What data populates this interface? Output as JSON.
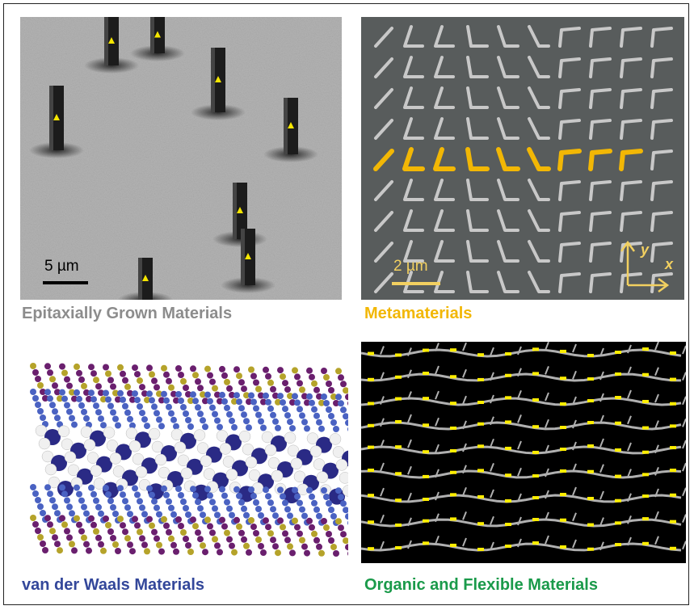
{
  "panels": [
    {
      "caption": "Epitaxially Grown Materials",
      "scale_bar_label": "5 µm",
      "caption_color": "#8c8c8c"
    },
    {
      "caption": "Metamaterials",
      "scale_bar_label": "2 µm",
      "axis_x_label": "x",
      "axis_y_label": "y",
      "caption_color": "#f2b705"
    },
    {
      "caption": "van der Waals Materials",
      "caption_color": "#33479a"
    },
    {
      "caption": "Organic and Flexible Materials",
      "caption_color": "#1a9a4a"
    }
  ],
  "colors": {
    "sem_background": "#b4b4b4",
    "nanowire": "#1c1c1c",
    "marker_yellow": "#f6e600",
    "metasurface_background": "#585c5c",
    "antenna_gray": "#c8c8c8",
    "antenna_highlight": "#f2b705",
    "atom_purple": "#6a1f6e",
    "atom_olive": "#b5a32a",
    "atom_blue": "#4a62c2",
    "atom_white": "#f0f0f0",
    "atom_darkblue": "#2a2a85",
    "organic_background": "#000000",
    "bond_gray": "#b0b0b0",
    "sulfur_yellow": "#ffee00"
  }
}
